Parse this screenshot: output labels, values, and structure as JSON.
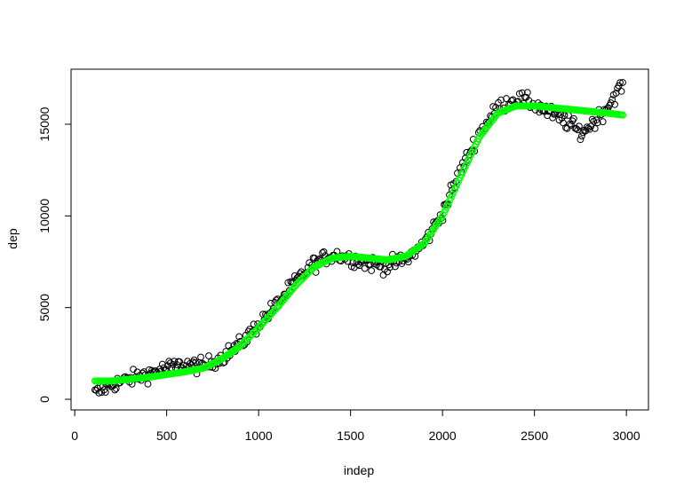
{
  "chart_data": {
    "type": "scatter",
    "xlabel": "indep",
    "ylabel": "dep",
    "xlim": [
      -20,
      3120
    ],
    "ylim": [
      -580,
      18000
    ],
    "xticks": [
      0,
      500,
      1000,
      1500,
      2000,
      2500,
      3000
    ],
    "xtick_labels": [
      "0",
      "500",
      "1000",
      "1500",
      "2000",
      "2500",
      "3000"
    ],
    "yticks": [
      0,
      5000,
      10000,
      15000
    ],
    "ytick_labels": [
      "0",
      "5000",
      "10000",
      "15000"
    ],
    "grid": false,
    "legend": "none",
    "colors": {
      "observed": "#000000",
      "fitted": "#00ff00"
    },
    "observed_trend": {
      "x": [
        110,
        200,
        300,
        400,
        500,
        600,
        700,
        800,
        900,
        1000,
        1100,
        1200,
        1300,
        1400,
        1500,
        1600,
        1700,
        1800,
        1900,
        2000,
        2100,
        2200,
        2300,
        2400,
        2500,
        2600,
        2700,
        2750,
        2800,
        2850,
        2900,
        2950,
        2980
      ],
      "y": [
        300,
        800,
        1100,
        1400,
        1700,
        1900,
        1800,
        2300,
        3000,
        4100,
        5200,
        6400,
        7400,
        7900,
        7700,
        7400,
        7300,
        7600,
        8500,
        10200,
        12500,
        14500,
        15900,
        16400,
        16100,
        15500,
        15000,
        14500,
        14900,
        15400,
        16000,
        16800,
        17100
      ]
    },
    "fitted_curve": {
      "x": [
        110,
        200,
        300,
        400,
        500,
        600,
        700,
        800,
        900,
        1000,
        1100,
        1200,
        1300,
        1400,
        1500,
        1600,
        1700,
        1800,
        1900,
        2000,
        2100,
        2200,
        2300,
        2400,
        2500,
        2600,
        2700,
        2800,
        2900,
        2980
      ],
      "y": [
        1000,
        1000,
        1100,
        1200,
        1350,
        1500,
        1700,
        2200,
        2900,
        3900,
        5000,
        6200,
        7200,
        7700,
        7800,
        7700,
        7600,
        7800,
        8500,
        10000,
        12200,
        14300,
        15600,
        16000,
        16000,
        15900,
        15800,
        15700,
        15600,
        15500
      ]
    }
  }
}
